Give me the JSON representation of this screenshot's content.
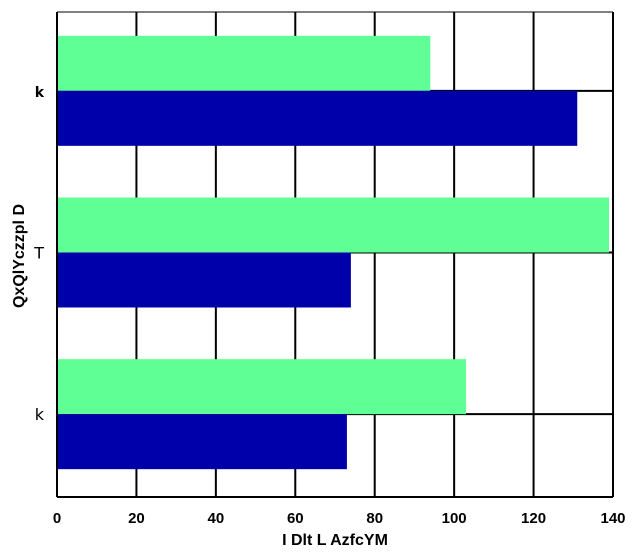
{
  "chart_data": {
    "type": "bar",
    "orientation": "horizontal",
    "categories": [
      "k",
      "T",
      "k"
    ],
    "category_label_styles": [
      "bold",
      "normal",
      "normal"
    ],
    "series": [
      {
        "values": [
          94,
          139,
          103
        ],
        "color": "#5fff95"
      },
      {
        "values": [
          131,
          74,
          73
        ],
        "color": "#0000aa"
      }
    ],
    "xlabel": "I Dlt L AzfcYM",
    "ylabel": "QxQlYczzpl D",
    "xlim": [
      0,
      140
    ],
    "xticks": [
      0,
      20,
      40,
      60,
      80,
      100,
      120,
      140
    ],
    "grid": true
  }
}
